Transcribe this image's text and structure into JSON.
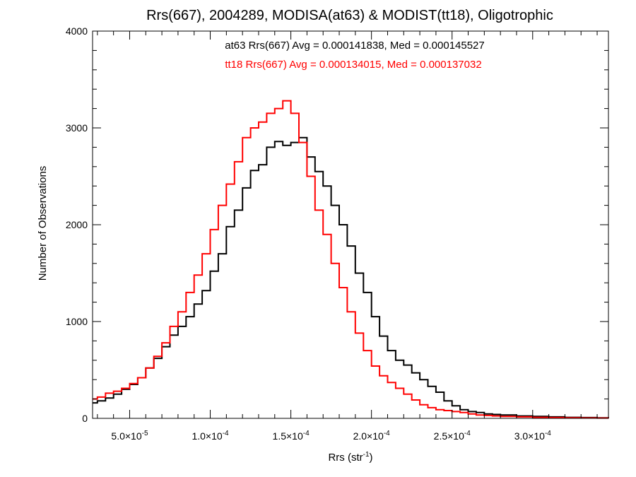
{
  "chart_data": {
    "type": "line",
    "title": "Rrs(667), 2004289, MODISA(at63) & MODIST(tt18), Oligotrophic",
    "xlabel": "Rrs (str",
    "xlabel_sup": "-1",
    "xlabel_end": ")",
    "ylabel": "Number of Observations",
    "xlim": [
      2.7e-05,
      0.000347
    ],
    "ylim": [
      0,
      4000
    ],
    "grid": false,
    "x_ticks": [
      {
        "value": 5e-05,
        "mantissa": "5.0×10",
        "exp": "-5"
      },
      {
        "value": 0.0001,
        "mantissa": "1.0×10",
        "exp": "-4"
      },
      {
        "value": 0.00015,
        "mantissa": "1.5×10",
        "exp": "-4"
      },
      {
        "value": 0.0002,
        "mantissa": "2.0×10",
        "exp": "-4"
      },
      {
        "value": 0.00025,
        "mantissa": "2.5×10",
        "exp": "-4"
      },
      {
        "value": 0.0003,
        "mantissa": "3.0×10",
        "exp": "-4"
      }
    ],
    "y_ticks": [
      {
        "value": 0,
        "label": "0"
      },
      {
        "value": 1000,
        "label": "1000"
      },
      {
        "value": 2000,
        "label": "2000"
      },
      {
        "value": 3000,
        "label": "3000"
      },
      {
        "value": 4000,
        "label": "4000"
      }
    ],
    "annotations": [
      {
        "text": "at63 Rrs(667) Avg = 0.000141838, Med = 0.000145527",
        "color": "#000000"
      },
      {
        "text": "tt18 Rrs(667) Avg = 0.000134015, Med = 0.000137032",
        "color": "#ff0000"
      }
    ],
    "series": [
      {
        "color": "#000000",
        "x": [
          2.7e-05,
          3e-05,
          3.5e-05,
          4e-05,
          4.5e-05,
          5e-05,
          5.5e-05,
          6e-05,
          6.5e-05,
          7e-05,
          7.5e-05,
          8e-05,
          8.5e-05,
          9e-05,
          9.5e-05,
          0.0001,
          0.000105,
          0.00011,
          0.000115,
          0.00012,
          0.000125,
          0.00013,
          0.000135,
          0.00014,
          0.000145,
          0.00015,
          0.000155,
          0.00016,
          0.000165,
          0.00017,
          0.000175,
          0.00018,
          0.000185,
          0.00019,
          0.000195,
          0.0002,
          0.000205,
          0.00021,
          0.000215,
          0.00022,
          0.000225,
          0.00023,
          0.000235,
          0.00024,
          0.000245,
          0.00025,
          0.000255,
          0.00026,
          0.000265,
          0.00027,
          0.000275,
          0.00028,
          0.00029,
          0.0003,
          0.00031,
          0.00032,
          0.00033,
          0.00034,
          0.000347
        ],
        "y": [
          160,
          180,
          210,
          250,
          300,
          350,
          420,
          520,
          620,
          740,
          860,
          950,
          1050,
          1180,
          1320,
          1520,
          1700,
          1980,
          2150,
          2380,
          2560,
          2620,
          2800,
          2860,
          2820,
          2850,
          2900,
          2700,
          2550,
          2400,
          2200,
          2000,
          1780,
          1500,
          1300,
          1050,
          850,
          700,
          600,
          550,
          470,
          400,
          330,
          270,
          180,
          130,
          90,
          70,
          60,
          45,
          40,
          35,
          25,
          20,
          15,
          10,
          8,
          5,
          3
        ]
      },
      {
        "color": "#ff0000",
        "x": [
          2.7e-05,
          3e-05,
          3.5e-05,
          4e-05,
          4.5e-05,
          5e-05,
          5.5e-05,
          6e-05,
          6.5e-05,
          7e-05,
          7.5e-05,
          8e-05,
          8.5e-05,
          9e-05,
          9.5e-05,
          0.0001,
          0.000105,
          0.00011,
          0.000115,
          0.00012,
          0.000125,
          0.00013,
          0.000135,
          0.00014,
          0.000145,
          0.00015,
          0.000155,
          0.00016,
          0.000165,
          0.00017,
          0.000175,
          0.00018,
          0.000185,
          0.00019,
          0.000195,
          0.0002,
          0.000205,
          0.00021,
          0.000215,
          0.00022,
          0.000225,
          0.00023,
          0.000235,
          0.00024,
          0.000245,
          0.00025,
          0.000255,
          0.00026,
          0.000265,
          0.00027,
          0.000275,
          0.00028,
          0.00029,
          0.0003,
          0.00031,
          0.00032,
          0.00033,
          0.00034,
          0.000347
        ],
        "y": [
          200,
          220,
          260,
          280,
          310,
          360,
          420,
          520,
          640,
          780,
          950,
          1100,
          1300,
          1480,
          1700,
          1950,
          2200,
          2420,
          2650,
          2900,
          3000,
          3060,
          3150,
          3200,
          3280,
          3150,
          2850,
          2500,
          2150,
          1900,
          1600,
          1350,
          1100,
          880,
          700,
          540,
          440,
          370,
          310,
          250,
          190,
          140,
          110,
          90,
          80,
          70,
          60,
          45,
          35,
          30,
          25,
          20,
          15,
          10,
          8,
          5,
          4,
          3,
          2
        ]
      }
    ]
  }
}
